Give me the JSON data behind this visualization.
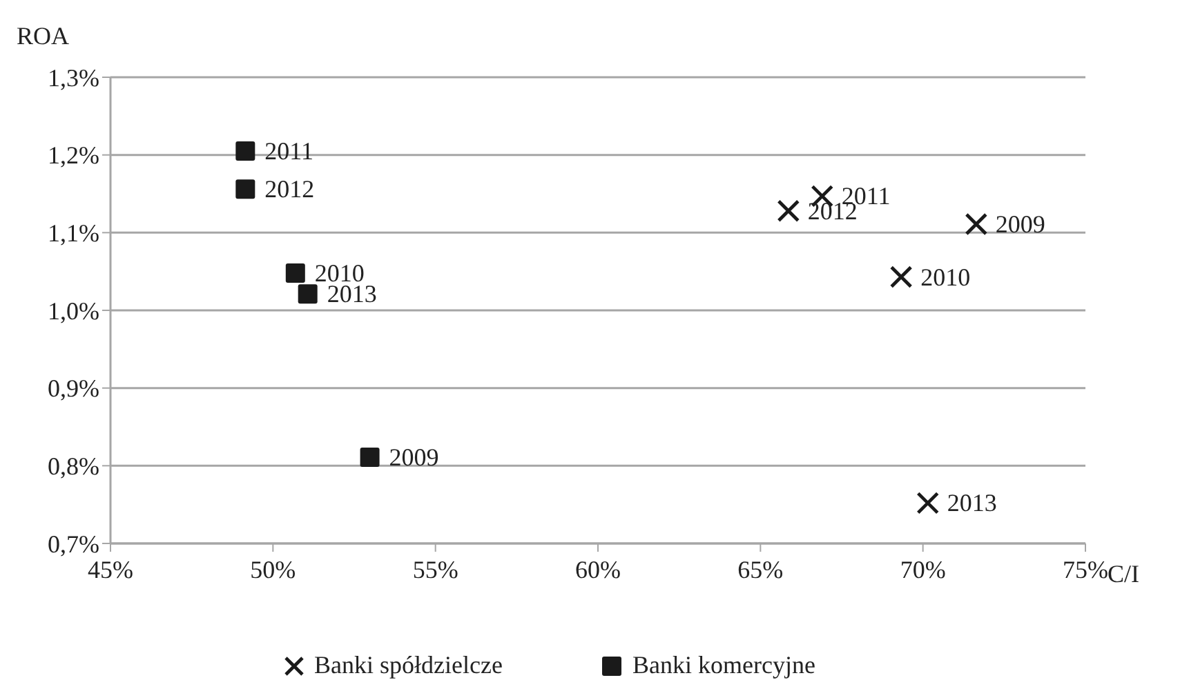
{
  "chart_data": {
    "type": "scatter",
    "xlabel": "C/I",
    "ylabel": "ROA",
    "xlim": [
      45,
      75
    ],
    "xticks": [
      {
        "value": 45,
        "label": "45%"
      },
      {
        "value": 50,
        "label": "50%"
      },
      {
        "value": 55,
        "label": "55%"
      },
      {
        "value": 60,
        "label": "60%"
      },
      {
        "value": 65,
        "label": "65%"
      },
      {
        "value": 70,
        "label": "70%"
      },
      {
        "value": 75,
        "label": "75%"
      }
    ],
    "ylim": [
      0.7,
      1.3
    ],
    "yticks": [
      {
        "value": 0.7,
        "label": "0,7%"
      },
      {
        "value": 0.8,
        "label": "0,8%"
      },
      {
        "value": 0.9,
        "label": "0,9%"
      },
      {
        "value": 1.0,
        "label": "1,0%"
      },
      {
        "value": 1.1,
        "label": "1,1%"
      },
      {
        "value": 1.2,
        "label": "1,2%"
      },
      {
        "value": 1.3,
        "label": "1,3%"
      }
    ],
    "grid": "y",
    "legend": "bottom",
    "series": [
      {
        "name": "Banki spółdzielcze",
        "color": "#1a1a1a",
        "marker": "cross",
        "x": [
          71.64,
          69.33,
          66.9,
          65.86,
          70.15
        ],
        "values": [
          1.111,
          1.043,
          1.147,
          1.128,
          0.752
        ]
      },
      {
        "name": "Banki komercyjne",
        "color": "#1a1a1a",
        "marker": "square",
        "x": [
          52.98,
          50.69,
          49.15,
          49.15,
          51.07
        ],
        "values": [
          0.811,
          1.048,
          1.205,
          1.156,
          1.021
        ]
      }
    ],
    "annotations": [
      {
        "text": "2009",
        "x": 71.64,
        "y": 1.111
      },
      {
        "text": "2010",
        "x": 69.33,
        "y": 1.043
      },
      {
        "text": "2011",
        "x": 66.9,
        "y": 1.147
      },
      {
        "text": "2012",
        "x": 65.86,
        "y": 1.128
      },
      {
        "text": "2013",
        "x": 70.15,
        "y": 0.752
      },
      {
        "text": "2009",
        "x": 52.98,
        "y": 0.811
      },
      {
        "text": "2010",
        "x": 50.69,
        "y": 1.048
      },
      {
        "text": "2011",
        "x": 49.15,
        "y": 1.205
      },
      {
        "text": "2012",
        "x": 49.15,
        "y": 1.156
      },
      {
        "text": "2013",
        "x": 51.07,
        "y": 1.021
      }
    ]
  }
}
